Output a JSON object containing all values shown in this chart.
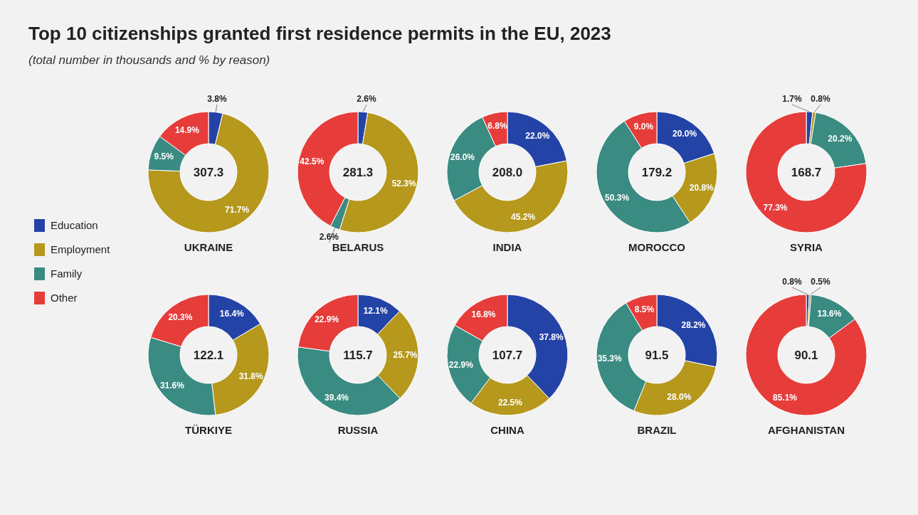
{
  "chart_data": [
    {
      "type": "other",
      "title": "Top 10 citizenships granted first residence permits in the EU, 2023",
      "subtitle": "(total number in thousands and % by reason)"
    },
    {
      "type": "donut",
      "title": "UKRAINE",
      "annotations": [
        "307.3"
      ],
      "legend": "left",
      "categories": [
        "Education",
        "Employment",
        "Family",
        "Other"
      ],
      "values": [
        3.8,
        71.7,
        9.5,
        14.9
      ],
      "value_labels": [
        "3.8%",
        "71.7%",
        "9.5%",
        "14.9%"
      ],
      "colors": [
        "#2443a7",
        "#b5981c",
        "#3a8b82",
        "#e63c3a"
      ]
    },
    {
      "type": "donut",
      "title": "BELARUS",
      "annotations": [
        "281.3"
      ],
      "categories": [
        null,
        null,
        null,
        null
      ],
      "values": [
        2.6,
        52.3,
        2.6,
        42.5
      ],
      "value_labels": [
        "2.6%",
        "52.3%",
        "2.6%",
        "42.5%"
      ],
      "colors": [
        "#2443a7",
        "#b5981c",
        "#3a8b82",
        "#e63c3a"
      ]
    },
    {
      "type": "donut",
      "title": "INDIA",
      "annotations": [
        "208.0"
      ],
      "categories": [
        null,
        null,
        null,
        null
      ],
      "values": [
        22.0,
        45.2,
        26.0,
        6.8
      ],
      "value_labels": [
        "22.0%",
        "45.2%",
        "26.0%",
        "6.8%"
      ],
      "colors": [
        "#2443a7",
        "#b5981c",
        "#3a8b82",
        "#e63c3a"
      ]
    },
    {
      "type": "donut",
      "title": "MOROCCO",
      "annotations": [
        "179.2"
      ],
      "categories": [
        null,
        null,
        null,
        null
      ],
      "values": [
        20.0,
        20.8,
        50.3,
        9.0
      ],
      "value_labels": [
        "20.0%",
        "20.8%",
        "50.3%",
        "9.0%"
      ],
      "colors": [
        "#2443a7",
        "#b5981c",
        "#3a8b82",
        "#e63c3a"
      ]
    },
    {
      "type": "donut",
      "title": "SYRIA",
      "annotations": [
        "168.7"
      ],
      "categories": [
        null,
        null,
        null,
        null
      ],
      "values": [
        1.7,
        0.8,
        20.2,
        77.3
      ],
      "value_labels": [
        "1.7%",
        "0.8%",
        "20.2%",
        "77.3%"
      ],
      "colors": [
        "#2443a7",
        "#b5981c",
        "#3a8b82",
        "#e63c3a"
      ]
    },
    {
      "type": "donut",
      "title": "TÜRKIYE",
      "annotations": [
        "122.1"
      ],
      "categories": [
        null,
        null,
        null,
        null
      ],
      "values": [
        16.4,
        31.8,
        31.6,
        20.3
      ],
      "value_labels": [
        "16.4%",
        "31.8%",
        "31.6%",
        "20.3%"
      ],
      "colors": [
        "#2443a7",
        "#b5981c",
        "#3a8b82",
        "#e63c3a"
      ]
    },
    {
      "type": "donut",
      "title": "RUSSIA",
      "annotations": [
        "115.7"
      ],
      "categories": [
        null,
        null,
        null,
        null
      ],
      "values": [
        12.1,
        25.7,
        39.4,
        22.9
      ],
      "value_labels": [
        "12.1%",
        "25.7%",
        "39.4%",
        "22.9%"
      ],
      "colors": [
        "#2443a7",
        "#b5981c",
        "#3a8b82",
        "#e63c3a"
      ]
    },
    {
      "type": "donut",
      "title": "CHINA",
      "annotations": [
        "107.7"
      ],
      "categories": [
        null,
        null,
        null,
        null
      ],
      "values": [
        37.8,
        22.5,
        22.9,
        16.8
      ],
      "value_labels": [
        "37.8%",
        "22.5%",
        "22.9%",
        "16.8%"
      ],
      "colors": [
        "#2443a7",
        "#b5981c",
        "#3a8b82",
        "#e63c3a"
      ]
    },
    {
      "type": "donut",
      "title": "BRAZIL",
      "annotations": [
        "91.5"
      ],
      "categories": [
        null,
        null,
        null,
        null
      ],
      "values": [
        28.2,
        28.0,
        35.3,
        8.5
      ],
      "value_labels": [
        "28.2%",
        "28.0%",
        "35.3%",
        "8.5%"
      ],
      "colors": [
        "#2443a7",
        "#b5981c",
        "#3a8b82",
        "#e63c3a"
      ]
    },
    {
      "type": "donut",
      "title": "AFGHANISTAN",
      "annotations": [
        "90.1"
      ],
      "categories": [
        null,
        null,
        null,
        null
      ],
      "values": [
        0.8,
        0.5,
        13.6,
        85.1
      ],
      "value_labels": [
        "0.8%",
        "0.5%",
        "13.6%",
        "85.1%"
      ],
      "colors": [
        "#2443a7",
        "#b5981c",
        "#3a8b82",
        "#e63c3a"
      ]
    }
  ]
}
